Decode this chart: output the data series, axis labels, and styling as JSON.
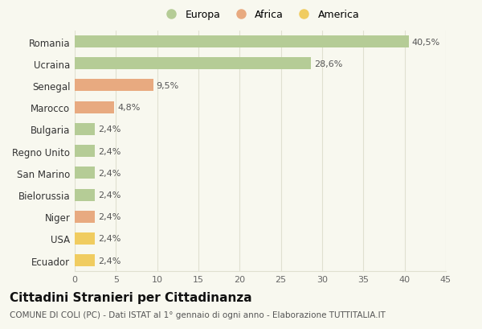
{
  "categories": [
    "Romania",
    "Ucraina",
    "Senegal",
    "Marocco",
    "Bulgaria",
    "Regno Unito",
    "San Marino",
    "Bielorussia",
    "Niger",
    "USA",
    "Ecuador"
  ],
  "values": [
    40.5,
    28.6,
    9.5,
    4.8,
    2.4,
    2.4,
    2.4,
    2.4,
    2.4,
    2.4,
    2.4
  ],
  "labels": [
    "40,5%",
    "28,6%",
    "9,5%",
    "4,8%",
    "2,4%",
    "2,4%",
    "2,4%",
    "2,4%",
    "2,4%",
    "2,4%",
    "2,4%"
  ],
  "colors": [
    "#b5cc96",
    "#b5cc96",
    "#e8aa80",
    "#e8aa80",
    "#b5cc96",
    "#b5cc96",
    "#b5cc96",
    "#b5cc96",
    "#e8aa80",
    "#f0cc60",
    "#f0cc60"
  ],
  "legend": [
    {
      "label": "Europa",
      "color": "#b5cc96"
    },
    {
      "label": "Africa",
      "color": "#e8aa80"
    },
    {
      "label": "America",
      "color": "#f0cc60"
    }
  ],
  "xlim": [
    0,
    45
  ],
  "xticks": [
    0,
    5,
    10,
    15,
    20,
    25,
    30,
    35,
    40,
    45
  ],
  "title": "Cittadini Stranieri per Cittadinanza",
  "subtitle": "COMUNE DI COLI (PC) - Dati ISTAT al 1° gennaio di ogni anno - Elaborazione TUTTITALIA.IT",
  "bg_color": "#f8f8ef",
  "grid_color": "#e0e0d0",
  "title_fontsize": 11,
  "subtitle_fontsize": 7.5,
  "label_fontsize": 8,
  "bar_height": 0.55
}
